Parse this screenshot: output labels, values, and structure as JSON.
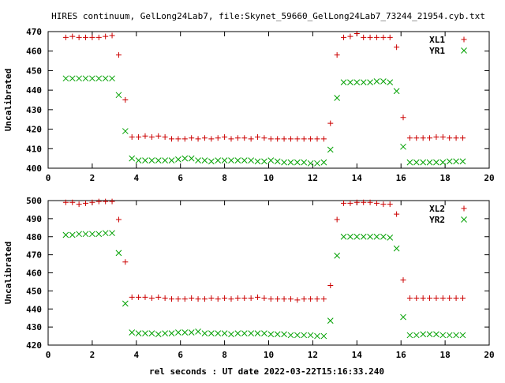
{
  "title": "HIRES continuum, GelLong24Lab7, file:Skynet_59660_GelLong24Lab7_73244_21954.cyb.txt",
  "xlabel": "rel seconds : UT date 2022-03-22T15:16:33.240",
  "colors": {
    "series1": "#cc0000",
    "series2": "#00a000",
    "axis": "#000000"
  },
  "chart_data": [
    {
      "type": "scatter",
      "ylabel": "Uncalibrated",
      "xlim": [
        0,
        20
      ],
      "ylim": [
        400,
        470
      ],
      "xticks": [
        0,
        2,
        4,
        6,
        8,
        10,
        12,
        14,
        16,
        18,
        20
      ],
      "yticks": [
        400,
        410,
        420,
        430,
        440,
        450,
        460,
        470
      ],
      "legend_position": "top-right",
      "x": [
        0.8,
        1.1,
        1.4,
        1.7,
        2.0,
        2.3,
        2.6,
        2.9,
        3.2,
        3.5,
        3.8,
        4.1,
        4.4,
        4.7,
        5.0,
        5.3,
        5.6,
        5.9,
        6.2,
        6.5,
        6.8,
        7.1,
        7.4,
        7.7,
        8.0,
        8.3,
        8.6,
        8.9,
        9.2,
        9.5,
        9.8,
        10.1,
        10.4,
        10.7,
        11.0,
        11.3,
        11.6,
        11.9,
        12.2,
        12.5,
        12.8,
        13.1,
        13.4,
        13.7,
        14.0,
        14.3,
        14.6,
        14.9,
        15.2,
        15.5,
        15.8,
        16.1,
        16.4,
        16.7,
        17.0,
        17.3,
        17.6,
        17.9,
        18.2,
        18.5,
        18.8
      ],
      "series": [
        {
          "name": "XL1",
          "marker": "+",
          "values": [
            467,
            467.5,
            467,
            467,
            467,
            467,
            467.5,
            468,
            458,
            435,
            416,
            416,
            416.5,
            416,
            416.5,
            416,
            415,
            415,
            415,
            415.5,
            415,
            415.5,
            415,
            415.5,
            416,
            415,
            415.5,
            415.5,
            415,
            416,
            415.5,
            415,
            415,
            415,
            415,
            415,
            415,
            415,
            415,
            415,
            423,
            458,
            467,
            467.5,
            469,
            467,
            467,
            467,
            467,
            467,
            462,
            426,
            415.5,
            415.5,
            415.5,
            415.5,
            416,
            416,
            415.5,
            415.5,
            415.5
          ]
        },
        {
          "name": "YR1",
          "marker": "x",
          "values": [
            446,
            446,
            446,
            446,
            446,
            446,
            446,
            446,
            437.5,
            419,
            405,
            404,
            404,
            404,
            404,
            404,
            404,
            404.5,
            405,
            405,
            404,
            404,
            403.5,
            404,
            404,
            404,
            404,
            404,
            404,
            403.5,
            403.5,
            404,
            403.5,
            403,
            403,
            403,
            403,
            402.5,
            402.5,
            403,
            409.5,
            436,
            444,
            444,
            444,
            444,
            444,
            444.5,
            444.5,
            444,
            439.5,
            411,
            403,
            403,
            403,
            403,
            403,
            403,
            403.5,
            403.5,
            403.5
          ]
        }
      ]
    },
    {
      "type": "scatter",
      "ylabel": "Uncalibrated",
      "xlim": [
        0,
        20
      ],
      "ylim": [
        420,
        500
      ],
      "xticks": [
        0,
        2,
        4,
        6,
        8,
        10,
        12,
        14,
        16,
        18,
        20
      ],
      "yticks": [
        420,
        430,
        440,
        450,
        460,
        470,
        480,
        490,
        500
      ],
      "legend_position": "top-right",
      "x": [
        0.8,
        1.1,
        1.4,
        1.7,
        2.0,
        2.3,
        2.6,
        2.9,
        3.2,
        3.5,
        3.8,
        4.1,
        4.4,
        4.7,
        5.0,
        5.3,
        5.6,
        5.9,
        6.2,
        6.5,
        6.8,
        7.1,
        7.4,
        7.7,
        8.0,
        8.3,
        8.6,
        8.9,
        9.2,
        9.5,
        9.8,
        10.1,
        10.4,
        10.7,
        11.0,
        11.3,
        11.6,
        11.9,
        12.2,
        12.5,
        12.8,
        13.1,
        13.4,
        13.7,
        14.0,
        14.3,
        14.6,
        14.9,
        15.2,
        15.5,
        15.8,
        16.1,
        16.4,
        16.7,
        17.0,
        17.3,
        17.6,
        17.9,
        18.2,
        18.5,
        18.8
      ],
      "series": [
        {
          "name": "XL2",
          "marker": "+",
          "values": [
            499,
            499,
            498,
            498.5,
            499,
            499.5,
            499.5,
            499.5,
            489.5,
            466,
            446.5,
            446.5,
            446.5,
            446,
            446.5,
            446,
            445.5,
            445.5,
            445.5,
            446,
            445.5,
            445.5,
            446,
            445.5,
            446,
            445.5,
            446,
            446,
            446,
            446.5,
            446,
            445.5,
            445.5,
            445.5,
            445.5,
            445,
            445.5,
            445.5,
            445.5,
            445.5,
            453,
            489.5,
            498.5,
            498.5,
            499,
            499,
            499,
            498.5,
            498,
            498,
            492.5,
            456,
            446,
            446,
            446,
            446,
            446,
            446,
            446,
            446,
            446
          ]
        },
        {
          "name": "YR2",
          "marker": "x",
          "values": [
            481,
            481,
            481.5,
            481.5,
            481.5,
            481.5,
            482,
            482,
            471,
            443,
            427,
            426.5,
            426.5,
            426.5,
            426,
            426.5,
            426.5,
            427,
            427,
            427,
            427.5,
            426.5,
            426.5,
            426.5,
            426.5,
            426,
            426.5,
            426.5,
            426.5,
            426.5,
            426.5,
            426,
            426,
            426,
            425.5,
            425.5,
            425.5,
            425.5,
            425,
            425,
            433.5,
            469.5,
            480,
            480,
            480,
            480,
            480,
            480,
            480,
            479.5,
            473.5,
            435.5,
            425.5,
            425.5,
            426,
            426,
            426,
            425.5,
            425.5,
            425.5,
            425.5
          ]
        }
      ]
    }
  ]
}
